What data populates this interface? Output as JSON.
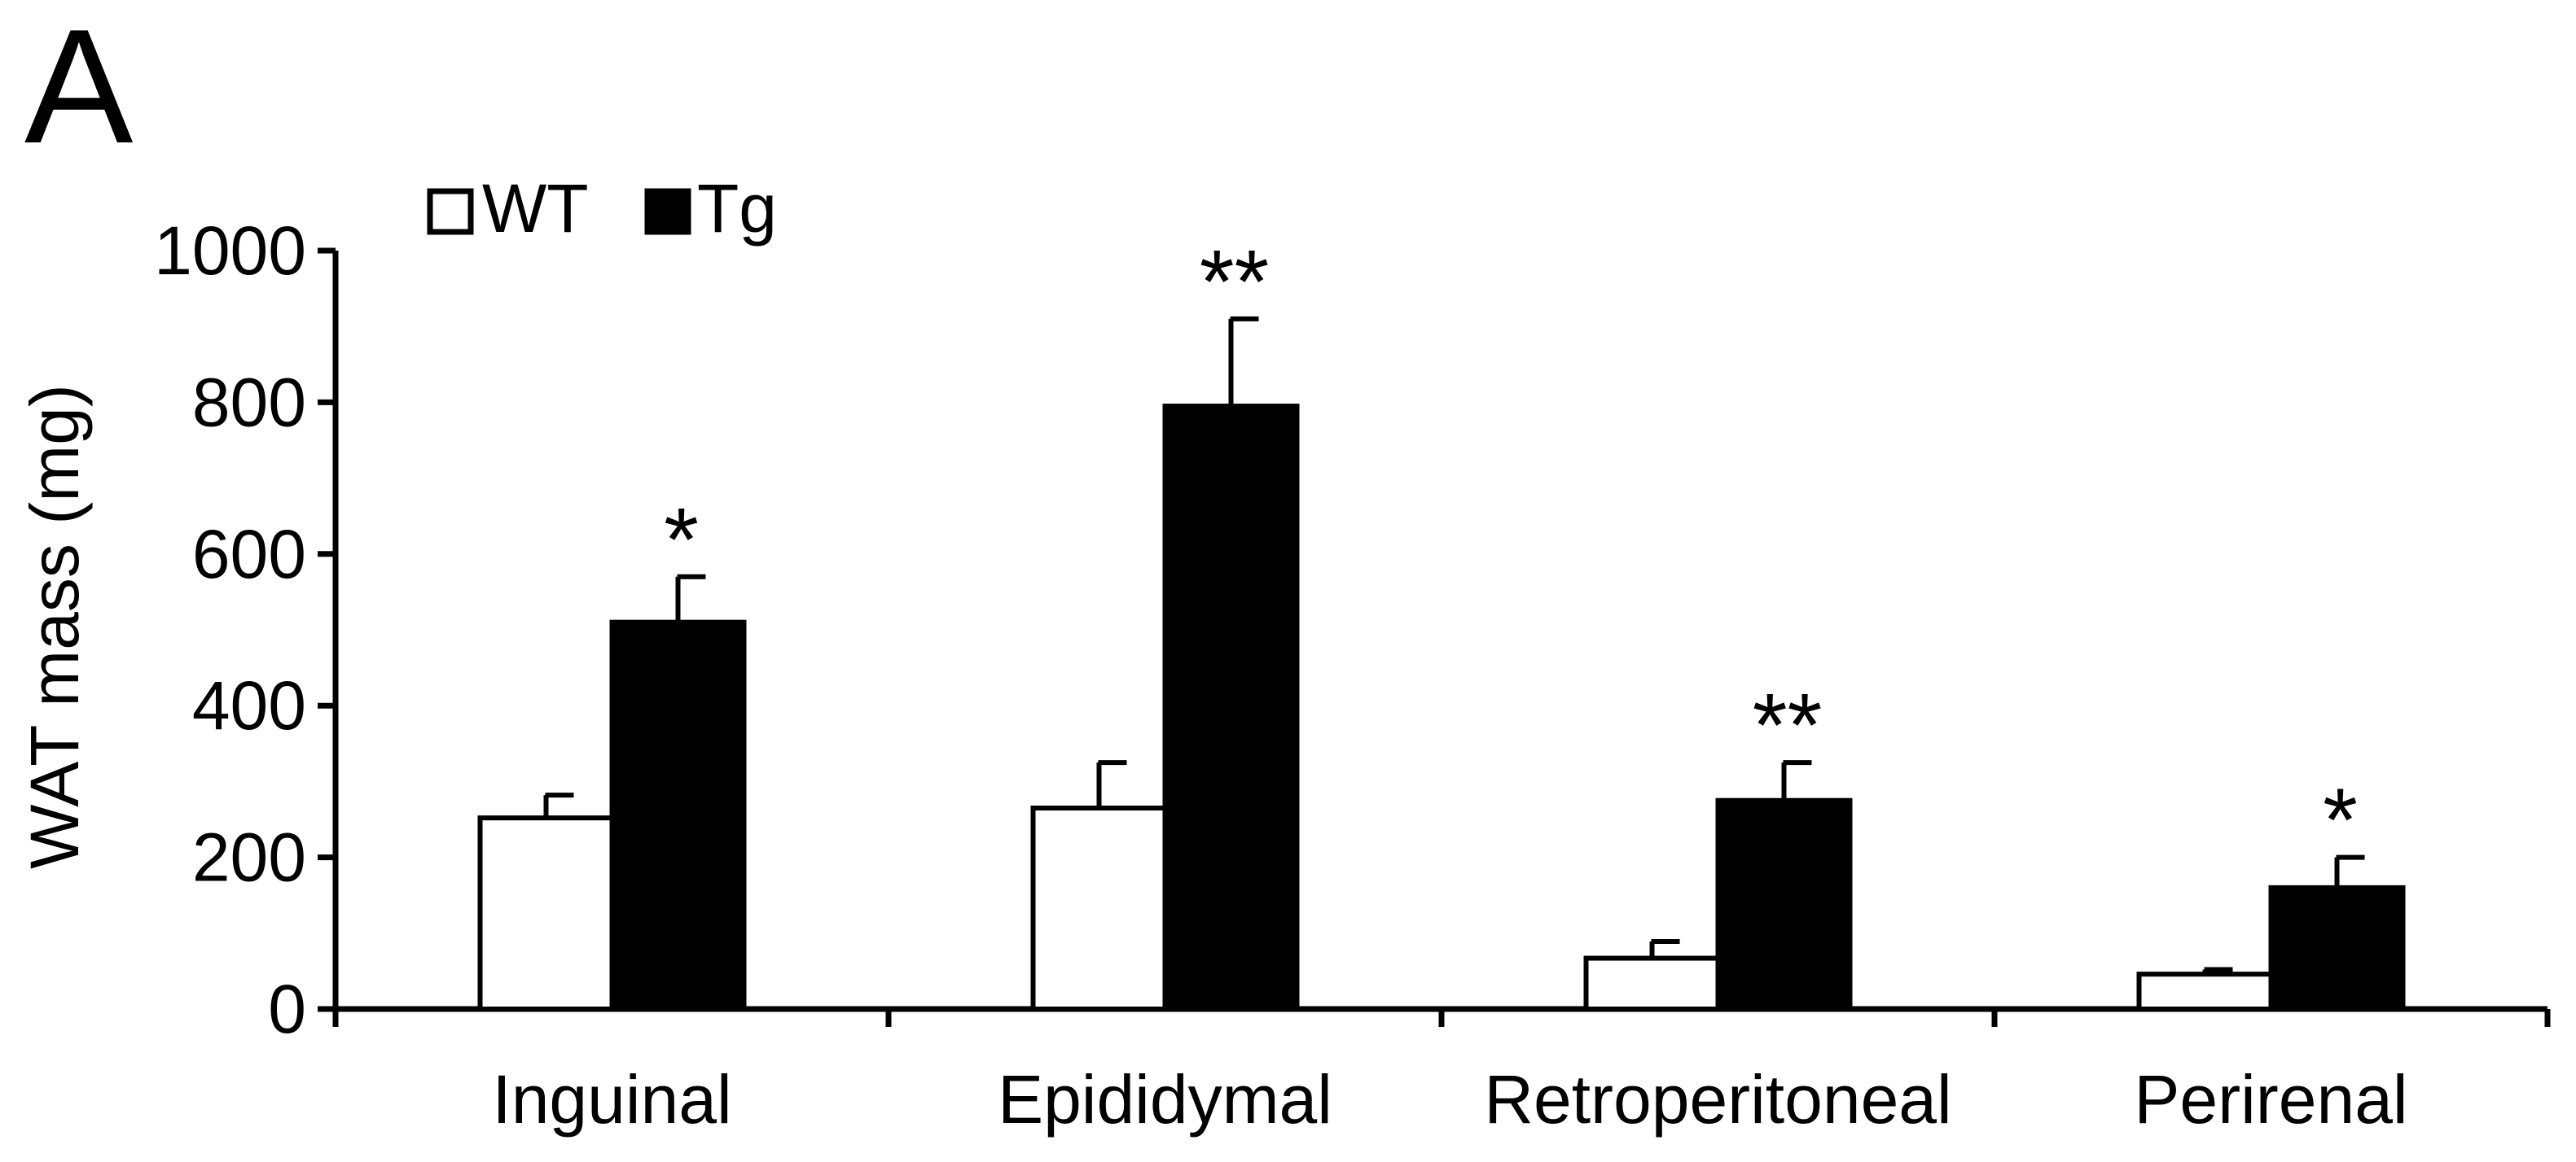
{
  "panel_label": "A",
  "chart_data": {
    "type": "bar",
    "title": "",
    "xlabel": "",
    "ylabel": "WAT mass (mg)",
    "ylim": [
      0,
      1000
    ],
    "yticks": [
      0,
      200,
      400,
      600,
      800,
      1000
    ],
    "legend_position": "top-left",
    "categories": [
      "Inguinal",
      "Epididymal",
      "Retroperitoneal",
      "Perirenal"
    ],
    "series": [
      {
        "name": "WT",
        "fill": "#ffffff",
        "values": [
          252,
          265,
          67,
          46
        ],
        "errors": [
          30,
          60,
          22,
          6
        ]
      },
      {
        "name": "Tg",
        "fill": "#000000",
        "values": [
          510,
          795,
          275,
          160
        ],
        "errors": [
          60,
          115,
          50,
          40
        ]
      }
    ],
    "annotations": [
      {
        "category": "Inguinal",
        "series": "Tg",
        "text": "*"
      },
      {
        "category": "Epididymal",
        "series": "Tg",
        "text": "**"
      },
      {
        "category": "Retroperitoneal",
        "series": "Tg",
        "text": "**"
      },
      {
        "category": "Perirenal",
        "series": "Tg",
        "text": "*"
      }
    ]
  }
}
